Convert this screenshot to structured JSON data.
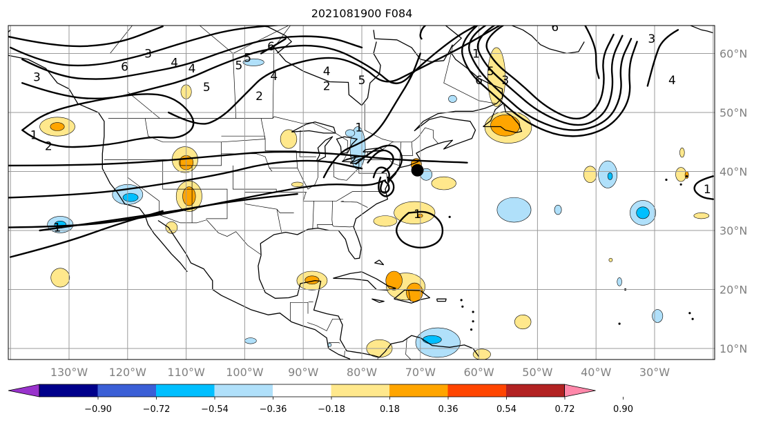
{
  "title": "2021081900 F084",
  "chart_data": {
    "type": "heatmap",
    "title": "2021081900 F084",
    "map": {
      "lon_range": [
        -142,
        -20
      ],
      "lat_range": [
        8,
        65
      ],
      "lon_ticks": [
        "130°W",
        "120°W",
        "110°W",
        "100°W",
        "90°W",
        "80°W",
        "70°W",
        "60°W",
        "50°W",
        "40°W",
        "30°W"
      ],
      "lat_ticks": [
        "10°N",
        "20°N",
        "30°N",
        "40°N",
        "50°N",
        "60°N"
      ],
      "grid": true
    },
    "colorbar": {
      "orientation": "horizontal",
      "placement": "bottom",
      "extend": "both",
      "levels": [
        "−0.90",
        "−0.72",
        "−0.54",
        "−0.36",
        "−0.18",
        "0.18",
        "0.36",
        "0.54",
        "0.72",
        "0.90"
      ],
      "colors": [
        "#9933cc",
        "#00008b",
        "#3b5fd6",
        "#00bfff",
        "#b0e0fa",
        "#ffffff",
        "#ffe88c",
        "#ffa500",
        "#ff4500",
        "#b22222",
        "#ff88aa"
      ]
    },
    "contour_labels": [
      "1",
      "2",
      "3",
      "4",
      "5",
      "6"
    ],
    "marker": {
      "lon": -70.5,
      "lat": 40.2,
      "color": "#000000"
    }
  }
}
